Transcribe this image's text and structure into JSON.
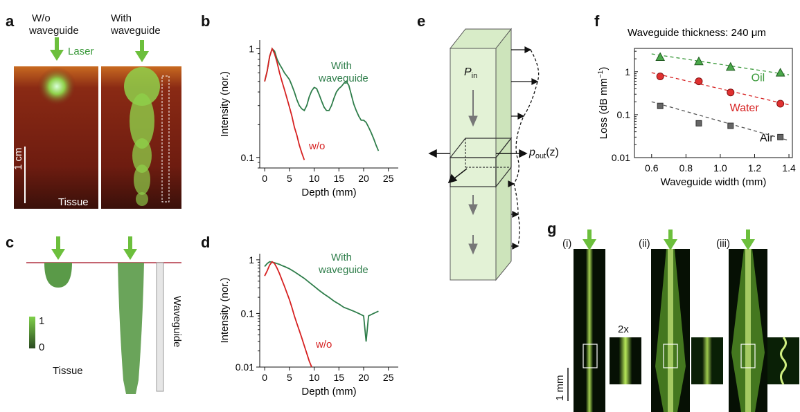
{
  "panel_letters": {
    "a": "a",
    "b": "b",
    "c": "c",
    "d": "d",
    "e": "e",
    "f": "f",
    "g": "g"
  },
  "panel_a": {
    "left_title_1": "W/o",
    "left_title_2": "waveguide",
    "right_title_1": "With",
    "right_title_2": "waveguide",
    "laser": "Laser",
    "scale": "1 cm",
    "tissue": "Tissue",
    "colors": {
      "tissue": "#7a1f12",
      "glow": "#8fd04a",
      "arrow": "#6cbf3c"
    }
  },
  "panel_c": {
    "scale_max": "1",
    "scale_min": "0",
    "tissue": "Tissue",
    "waveguide": "Waveguide"
  },
  "panel_e": {
    "p_in": "P",
    "p_in_sub": "in",
    "p_out": "p",
    "p_out_sub": "out",
    "p_out_arg": "(z)"
  },
  "panel_g": {
    "i": "(i)",
    "ii": "(ii)",
    "iii": "(iii)",
    "zoom": "2x",
    "scale": "1 mm"
  },
  "chart_data": [
    {
      "panel": "b",
      "type": "line",
      "yscale": "log",
      "xlabel": "Depth (mm)",
      "ylabel": "Intensity (nor.)",
      "xlim": [
        -1,
        27
      ],
      "ylim": [
        0.08,
        1.2
      ],
      "xticks": [
        0,
        5,
        10,
        15,
        20,
        25
      ],
      "yticks": [
        0.1,
        1
      ],
      "ytick_labels": [
        "0.1",
        "1"
      ],
      "annotations": [
        {
          "text": "With",
          "color": "#2e7d4a"
        },
        {
          "text": "waveguide",
          "color": "#2e7d4a"
        },
        {
          "text": "w/o",
          "color": "#d62020"
        }
      ],
      "series": [
        {
          "color": "#2e7d4a",
          "x": [
            0,
            0.5,
            1,
            1.5,
            2,
            2.5,
            3,
            3.5,
            4,
            4.5,
            5,
            5.5,
            6,
            6.5,
            7,
            7.5,
            8,
            8.5,
            9,
            9.5,
            10,
            10.5,
            11,
            11.5,
            12,
            12.5,
            13,
            13.5,
            14,
            14.5,
            15,
            15.5,
            16,
            16.5,
            17,
            17.5,
            18,
            18.5,
            19,
            19.5,
            20,
            20.5,
            21,
            21.5,
            22,
            22.5,
            23
          ],
          "y": [
            0.5,
            0.62,
            0.85,
            1.0,
            0.95,
            0.8,
            0.72,
            0.66,
            0.6,
            0.56,
            0.52,
            0.46,
            0.4,
            0.34,
            0.3,
            0.28,
            0.27,
            0.3,
            0.36,
            0.41,
            0.44,
            0.43,
            0.38,
            0.33,
            0.29,
            0.27,
            0.27,
            0.3,
            0.35,
            0.4,
            0.43,
            0.45,
            0.48,
            0.5,
            0.46,
            0.38,
            0.31,
            0.27,
            0.24,
            0.22,
            0.22,
            0.21,
            0.19,
            0.17,
            0.15,
            0.13,
            0.115
          ]
        },
        {
          "color": "#d62020",
          "x": [
            0,
            0.5,
            1,
            1.5,
            2,
            2.5,
            3,
            3.5,
            4,
            4.5,
            5,
            5.5,
            6,
            6.5,
            7,
            7.5,
            8
          ],
          "y": [
            0.5,
            0.62,
            0.85,
            1.0,
            0.9,
            0.75,
            0.6,
            0.5,
            0.42,
            0.35,
            0.29,
            0.24,
            0.19,
            0.16,
            0.13,
            0.11,
            0.095
          ]
        }
      ]
    },
    {
      "panel": "d",
      "type": "line",
      "yscale": "log",
      "xlabel": "Depth (mm)",
      "ylabel": "Intensity (nor.)",
      "xlim": [
        -1,
        27
      ],
      "ylim": [
        0.01,
        1.3
      ],
      "xticks": [
        0,
        5,
        10,
        15,
        20,
        25
      ],
      "yticks": [
        0.01,
        0.1,
        1
      ],
      "ytick_labels": [
        "0.01",
        "0.1",
        "1"
      ],
      "annotations": [
        {
          "text": "With",
          "color": "#2e7d4a"
        },
        {
          "text": "waveguide",
          "color": "#2e7d4a"
        },
        {
          "text": "w/o",
          "color": "#d62020"
        }
      ],
      "series": [
        {
          "color": "#2e7d4a",
          "x": [
            0,
            0.5,
            1,
            1.5,
            2,
            2.5,
            3,
            3.5,
            4,
            5,
            6,
            7,
            8,
            9,
            10,
            11,
            12,
            13,
            14,
            15,
            16,
            17,
            18,
            19,
            20,
            20.5,
            21,
            22,
            23
          ],
          "y": [
            0.75,
            0.85,
            0.92,
            0.9,
            0.88,
            0.85,
            0.82,
            0.78,
            0.75,
            0.68,
            0.6,
            0.52,
            0.45,
            0.38,
            0.32,
            0.27,
            0.23,
            0.2,
            0.17,
            0.15,
            0.13,
            0.12,
            0.11,
            0.1,
            0.09,
            0.03,
            0.09,
            0.1,
            0.11
          ]
        },
        {
          "color": "#d62020",
          "x": [
            0,
            0.5,
            1,
            1.5,
            2,
            2.5,
            3,
            3.5,
            4,
            4.5,
            5,
            5.5,
            6,
            6.5,
            7,
            7.5,
            8,
            8.5,
            9,
            9.5
          ],
          "y": [
            0.5,
            0.62,
            0.8,
            0.92,
            0.85,
            0.7,
            0.55,
            0.42,
            0.32,
            0.24,
            0.18,
            0.13,
            0.09,
            0.065,
            0.048,
            0.035,
            0.025,
            0.018,
            0.013,
            0.01
          ]
        }
      ]
    },
    {
      "panel": "f",
      "type": "scatter",
      "yscale": "log",
      "title": "Waveguide thickness: 240 μm",
      "xlabel": "Waveguide width (mm)",
      "ylabel_main": "Loss (dB mm",
      "ylabel_sup": "−1",
      "ylabel_end": ")",
      "xlim": [
        0.5,
        1.42
      ],
      "ylim": [
        0.01,
        3.5
      ],
      "xticks": [
        0.6,
        0.8,
        1.0,
        1.2,
        1.4
      ],
      "xtick_labels": [
        "0.6",
        "0.8",
        "1.0",
        "1.2",
        "1.4"
      ],
      "yticks": [
        0.01,
        0.1,
        1
      ],
      "ytick_labels": [
        "0.01",
        "0.1",
        "1"
      ],
      "series": [
        {
          "name": "Oil",
          "marker": "triangle",
          "color": "#3c9a3c",
          "x": [
            0.65,
            0.875,
            1.06,
            1.35
          ],
          "y": [
            2.2,
            1.75,
            1.3,
            0.95
          ],
          "fit": [
            2.6,
            0.85
          ]
        },
        {
          "name": "Water",
          "marker": "circle",
          "color": "#d62020",
          "x": [
            0.65,
            0.875,
            1.06,
            1.35
          ],
          "y": [
            0.78,
            0.6,
            0.33,
            0.18
          ],
          "fit": [
            0.95,
            0.17
          ]
        },
        {
          "name": "Air",
          "marker": "square",
          "color": "#555555",
          "x": [
            0.65,
            0.875,
            1.06,
            1.35
          ],
          "y": [
            0.16,
            0.063,
            0.055,
            0.03
          ],
          "fit": [
            0.2,
            0.025
          ]
        }
      ]
    }
  ]
}
